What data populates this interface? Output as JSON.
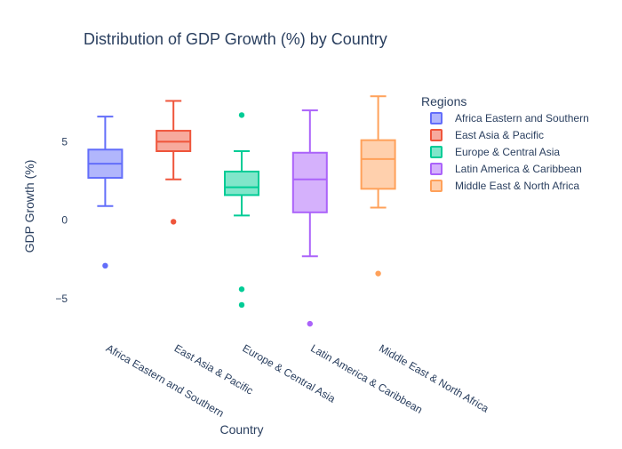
{
  "chart_data": {
    "type": "box",
    "title": "Distribution of GDP Growth (%) by Country",
    "xlabel": "Country",
    "ylabel": "GDP Growth (%)",
    "ylim": [
      -7.5,
      9.5
    ],
    "y_ticks": [
      -5,
      0,
      5
    ],
    "y_tick_labels": [
      "−5",
      "0",
      "5"
    ],
    "grid": false,
    "legend": {
      "title": "Regions",
      "placement": "top-right"
    },
    "categories": [
      "Africa Eastern and Southern",
      "East Asia & Pacific",
      "Europe & Central Asia",
      "Latin America & Caribbean",
      "Middle East & North Africa"
    ],
    "series": [
      {
        "name": "Africa Eastern and Southern",
        "color": "#636efa",
        "fill": "#b1b6fc",
        "min": 0.9,
        "q1": 2.7,
        "median": 3.6,
        "q3": 4.5,
        "max": 6.6,
        "outliers": [
          -2.9
        ]
      },
      {
        "name": "East Asia & Pacific",
        "color": "#ef553b",
        "fill": "#f7aa9d",
        "min": 2.6,
        "q1": 4.4,
        "median": 5.0,
        "q3": 5.7,
        "max": 7.6,
        "outliers": [
          -0.1
        ]
      },
      {
        "name": "Europe & Central Asia",
        "color": "#00cc96",
        "fill": "#80e6ca",
        "min": 0.3,
        "q1": 1.6,
        "median": 2.1,
        "q3": 3.1,
        "max": 4.4,
        "outliers": [
          6.7,
          -4.4,
          -5.4
        ]
      },
      {
        "name": "Latin America & Caribbean",
        "color": "#ab63fa",
        "fill": "#d5b1fc",
        "min": -2.3,
        "q1": 0.5,
        "median": 2.6,
        "q3": 4.3,
        "max": 7.0,
        "outliers": [
          -6.6
        ]
      },
      {
        "name": "Middle East & North Africa",
        "color": "#ffa15a",
        "fill": "#ffd0ad",
        "min": 0.8,
        "q1": 2.0,
        "median": 3.9,
        "q3": 5.1,
        "max": 7.9,
        "outliers": [
          -3.4
        ]
      }
    ]
  }
}
